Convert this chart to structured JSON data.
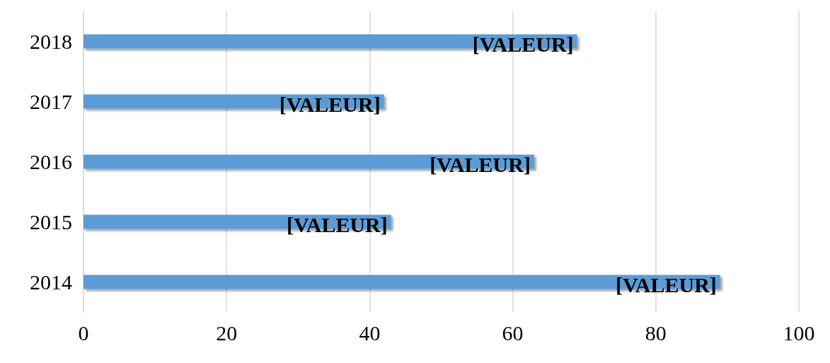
{
  "chart_data": {
    "type": "bar",
    "orientation": "horizontal",
    "categories": [
      "2018",
      "2017",
      "2016",
      "2015",
      "2014"
    ],
    "values": [
      69,
      42,
      63,
      43,
      89
    ],
    "value_labels": [
      "[VALEUR]",
      "[VALEUR]",
      "[VALEUR]",
      "[VALEUR]",
      "[VALEUR]"
    ],
    "color": "#5b9bd5",
    "xlim": [
      0,
      100
    ],
    "xticks": [
      0,
      20,
      40,
      60,
      80,
      100
    ],
    "grid": "x"
  }
}
